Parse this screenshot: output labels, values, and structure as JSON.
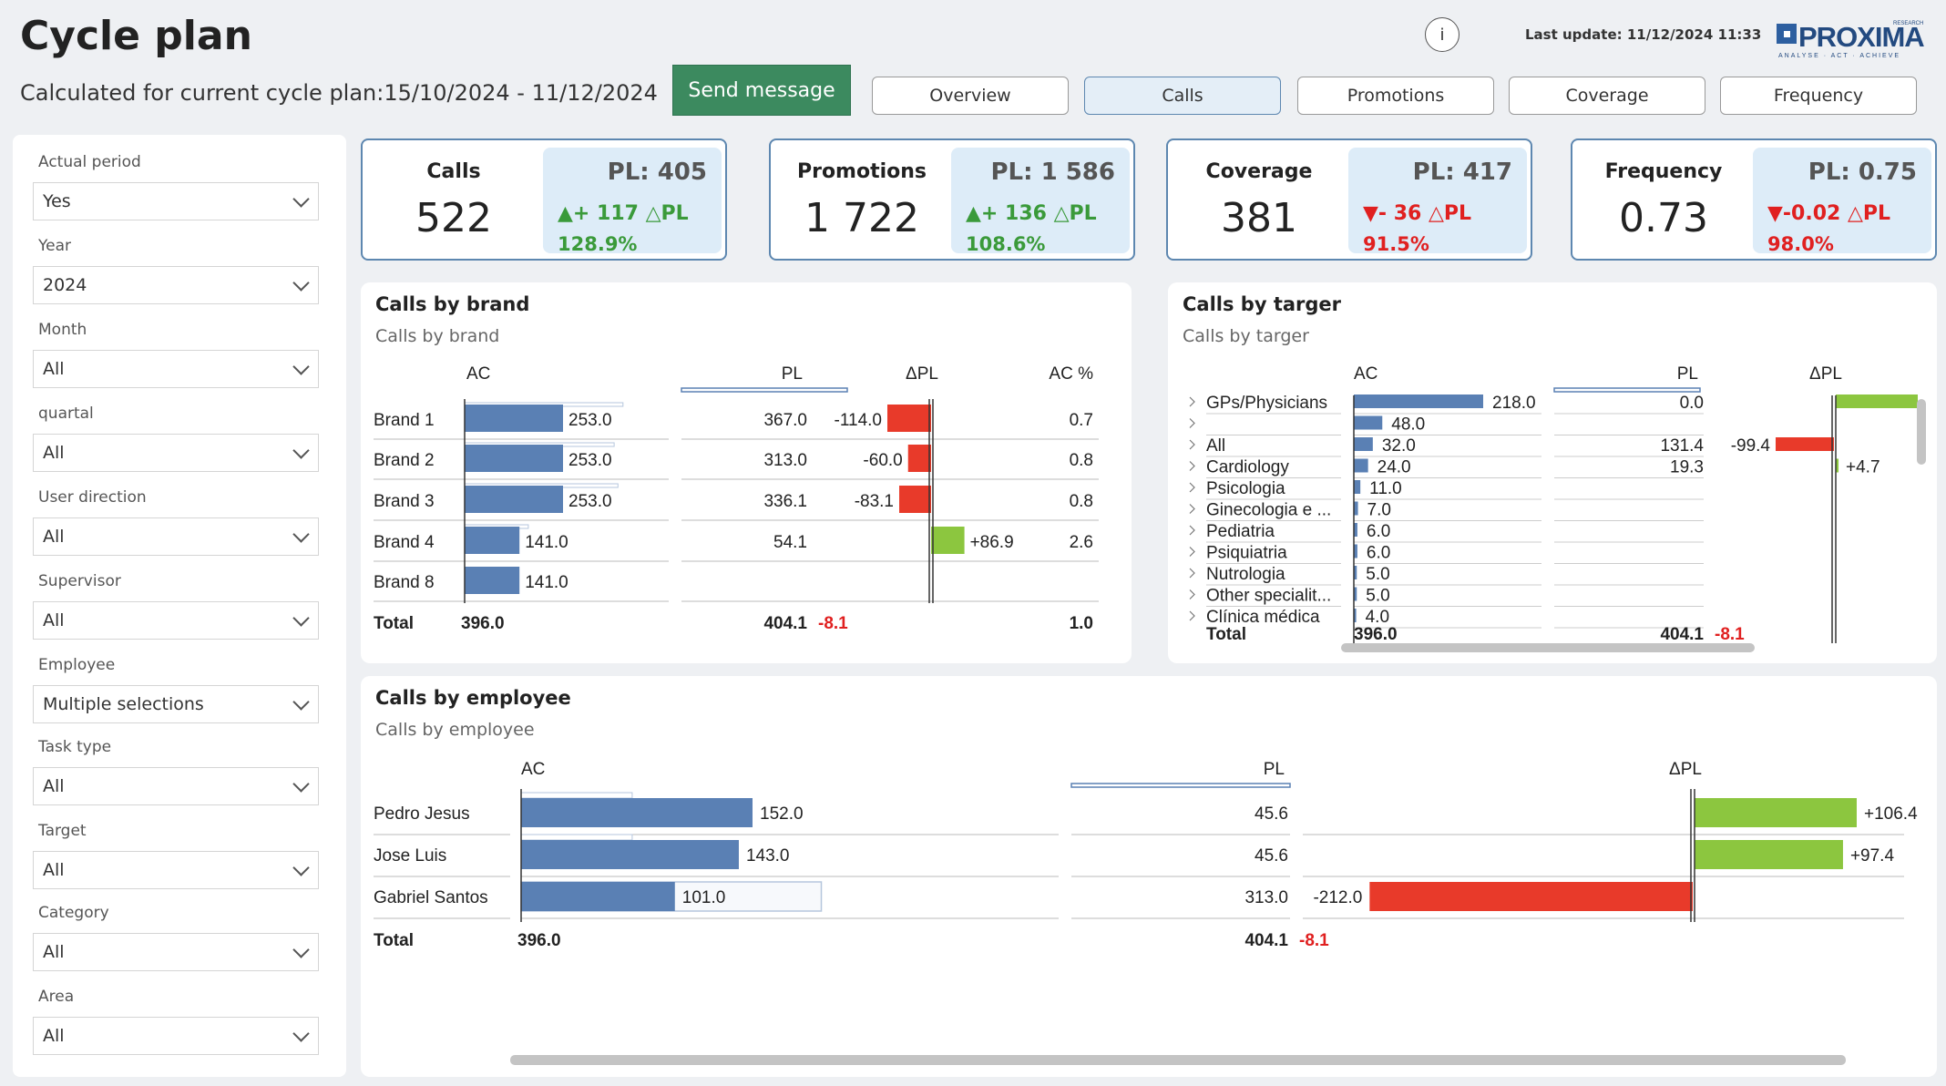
{
  "header": {
    "title": "Cycle plan",
    "subtitle": "Calculated for current cycle plan:15/10/2024 - 11/12/2024",
    "info_icon": "i",
    "last_update": "Last update: 11/12/2024 11:33",
    "send_button": "Send message",
    "logo": {
      "text": "PROXIMA",
      "tagline": "ANALYSE · ACT · ACHIEVE",
      "sup": "RESEARCH"
    }
  },
  "tabs": [
    {
      "label": "Overview",
      "active": false
    },
    {
      "label": "Calls",
      "active": true
    },
    {
      "label": "Promotions",
      "active": false
    },
    {
      "label": "Coverage",
      "active": false
    },
    {
      "label": "Frequency",
      "active": false
    }
  ],
  "filters": [
    {
      "label": "Actual period",
      "value": "Yes"
    },
    {
      "label": "Year",
      "value": "2024"
    },
    {
      "label": "Month",
      "value": "All"
    },
    {
      "label": "quartal",
      "value": "All"
    },
    {
      "label": "User direction",
      "value": "All"
    },
    {
      "label": "Supervisor",
      "value": "All"
    },
    {
      "label": "Employee",
      "value": "Multiple selections"
    },
    {
      "label": "Task type",
      "value": "All"
    },
    {
      "label": "Target",
      "value": "All"
    },
    {
      "label": "Category",
      "value": "All"
    },
    {
      "label": "Area",
      "value": "All"
    }
  ],
  "kpis": [
    {
      "name": "Calls",
      "value": "522",
      "pl": "PL: 405",
      "delta": "▲+ 117 △PL",
      "pct": "128.9%",
      "trend": "up"
    },
    {
      "name": "Promotions",
      "value": "1 722",
      "pl": "PL: 1 586",
      "delta": "▲+ 136 △PL",
      "pct": "108.6%",
      "trend": "up"
    },
    {
      "name": "Coverage",
      "value": "381",
      "pl": "PL: 417",
      "delta": "▼- 36 △PL",
      "pct": "91.5%",
      "trend": "down"
    },
    {
      "name": "Frequency",
      "value": "0.73",
      "pl": "PL: 0.75",
      "delta": "▼-0.02 △PL",
      "pct": "98.0%",
      "trend": "down"
    }
  ],
  "colors": {
    "ac_bar": "#5a80b4",
    "positive": "#8cc63f",
    "negative": "#e83a2a",
    "kpi_border": "#5d87b0",
    "kpi_fill": "#ddecf8",
    "send_button": "#3c8a5f"
  },
  "chart_data": [
    {
      "type": "bar",
      "title": "Calls by brand",
      "subtitle": "Calls by brand",
      "headers": {
        "ac": "AC",
        "pl": "PL",
        "dpl": "ΔPL",
        "acpct": "AC %"
      },
      "categories": [
        "Brand 1",
        "Brand 2",
        "Brand 3",
        "Brand 4",
        "Brand 8"
      ],
      "ac": [
        253.0,
        253.0,
        253.0,
        141.0,
        141.0
      ],
      "ac_labels": [
        "253.0",
        "253.0",
        "253.0",
        "141.0",
        "141.0"
      ],
      "pl": [
        367.0,
        313.0,
        336.1,
        54.1,
        null
      ],
      "pl_labels": [
        "367.0",
        "313.0",
        "336.1",
        "54.1",
        ""
      ],
      "dpl": [
        -114.0,
        -60.0,
        -83.1,
        86.9,
        null
      ],
      "dpl_labels": [
        "-114.0",
        "-60.0",
        "-83.1",
        "+86.9",
        ""
      ],
      "ac_pct": [
        "0.7",
        "0.8",
        "0.8",
        "2.6",
        ""
      ],
      "total": {
        "label": "Total",
        "ac": "396.0",
        "pl": "404.1",
        "dpl": "-8.1",
        "ac_pct": "1.0"
      }
    },
    {
      "type": "bar",
      "title": "Calls by targer",
      "subtitle": "Calls by targer",
      "headers": {
        "ac": "AC",
        "pl": "PL",
        "dpl": "ΔPL"
      },
      "categories": [
        "GPs/Physicians",
        "",
        "All",
        "Cardiology",
        "Psicologia",
        "Ginecologia e ...",
        "Pediatria",
        "Psiquiatria",
        "Nutrologia",
        "Other specialit...",
        "Clínica médica"
      ],
      "ac": [
        218.0,
        48.0,
        32.0,
        24.0,
        11.0,
        7.0,
        6.0,
        6.0,
        5.0,
        5.0,
        4.0
      ],
      "ac_labels": [
        "218.0",
        "48.0",
        "32.0",
        "24.0",
        "11.0",
        "7.0",
        "6.0",
        "6.0",
        "5.0",
        "5.0",
        "4.0"
      ],
      "pl_labels": [
        "0.0",
        "",
        "131.4",
        "19.3",
        "",
        "",
        "",
        "",
        "",
        "",
        ""
      ],
      "dpl": [
        218.0,
        null,
        -99.4,
        4.7,
        null,
        null,
        null,
        null,
        null,
        null,
        null
      ],
      "dpl_labels": [
        "",
        "",
        "-99.4",
        "+4.7",
        "",
        "",
        "",
        "",
        "",
        "",
        ""
      ],
      "total": {
        "label": "Total",
        "ac": "396.0",
        "pl": "404.1",
        "dpl": "-8.1"
      }
    },
    {
      "type": "bar",
      "title": "Calls by employee",
      "subtitle": "Calls by employee",
      "headers": {
        "ac": "AC",
        "pl": "PL",
        "dpl": "ΔPL"
      },
      "categories": [
        "Pedro Jesus",
        "Jose Luis",
        "Gabriel Santos"
      ],
      "ac": [
        152.0,
        143.0,
        101.0
      ],
      "ac_labels": [
        "152.0",
        "143.0",
        "101.0"
      ],
      "pl": [
        45.6,
        45.6,
        313.0
      ],
      "pl_labels": [
        "45.6",
        "45.6",
        "313.0"
      ],
      "dpl": [
        106.4,
        97.4,
        -212.0
      ],
      "dpl_labels": [
        "+106.4",
        "+97.4",
        "-212.0"
      ],
      "total": {
        "label": "Total",
        "ac": "396.0",
        "pl": "404.1",
        "dpl": "-8.1"
      }
    }
  ]
}
